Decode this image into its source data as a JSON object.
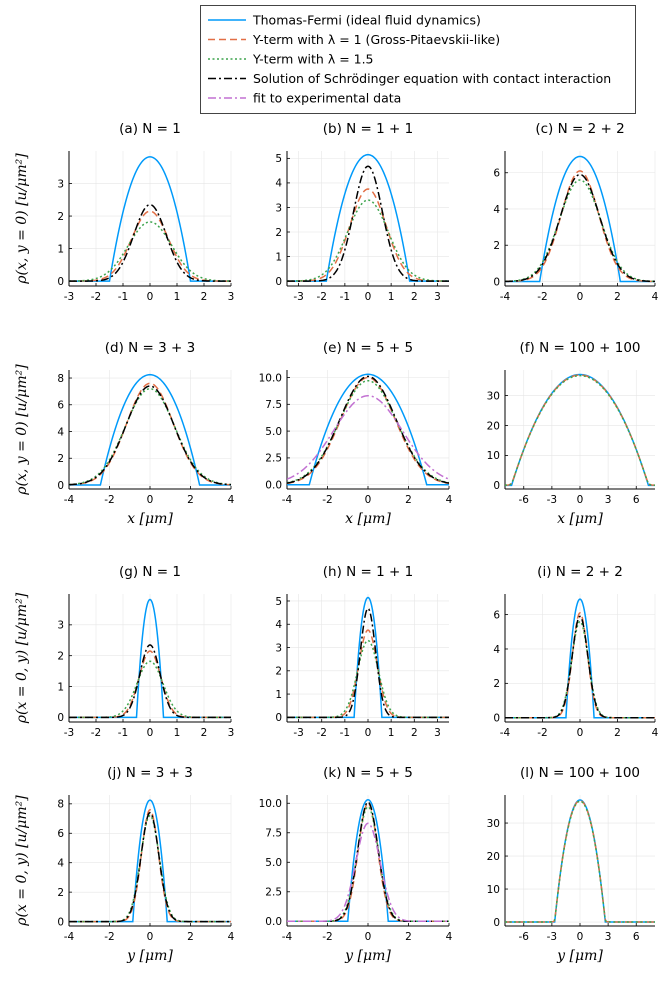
{
  "legend": [
    {
      "label": "Thomas-Fermi (ideal fluid dynamics)",
      "color": "#009AFA",
      "dash": "solid"
    },
    {
      "label": "Y-term with λ = 1 (Gross-Pitaevskii-like)",
      "color": "#E26F46",
      "dash": "dash"
    },
    {
      "label": "Y-term with λ = 1.5",
      "color": "#3DA44D",
      "dash": "dot"
    },
    {
      "label": "Solution of Schrödinger equation with contact interaction",
      "color": "#000000",
      "dash": "dashdot"
    },
    {
      "label": "fit to experimental data",
      "color": "#C271D2",
      "dash": "dashdot"
    }
  ],
  "row_ylabels": [
    "ρ(x, y = 0) [u/μm²]",
    "ρ(x = 0, y) [u/μm²]"
  ],
  "xlabels": [
    "x [μm]",
    "y [μm]"
  ],
  "chart_data": [
    {
      "type": "line",
      "title": "(a) N = 1",
      "axis": "x",
      "xlim": [
        -3,
        3
      ],
      "ylim": [
        -0.15,
        4.0
      ],
      "xticks": [
        -3,
        -2,
        -1,
        0,
        1,
        2,
        3
      ],
      "yticks": [
        0,
        1,
        2,
        3
      ],
      "series": [
        {
          "name": "Thomas-Fermi (ideal fluid dynamics)",
          "kind": "tf",
          "peak": 3.82,
          "R": 1.5
        },
        {
          "name": "Y-term with λ = 1 (Gross-Pitaevskii-like)",
          "kind": "gauss",
          "peak": 2.15,
          "sigma": 0.68
        },
        {
          "name": "Y-term with λ = 1.5",
          "kind": "gauss",
          "peak": 1.82,
          "sigma": 0.8
        },
        {
          "name": "Solution of Schrödinger equation with contact interaction",
          "kind": "gauss",
          "peak": 2.35,
          "sigma": 0.6
        }
      ]
    },
    {
      "type": "line",
      "title": "(b) N = 1 + 1",
      "axis": "x",
      "xlim": [
        -3.5,
        3.5
      ],
      "ylim": [
        -0.2,
        5.3
      ],
      "xticks": [
        -3,
        -2,
        -1,
        0,
        1,
        2,
        3
      ],
      "yticks": [
        0,
        1,
        2,
        3,
        4,
        5
      ],
      "series": [
        {
          "name": "Thomas-Fermi (ideal fluid dynamics)",
          "kind": "tf",
          "peak": 5.15,
          "R": 1.8
        },
        {
          "name": "Y-term with λ = 1 (Gross-Pitaevskii-like)",
          "kind": "gauss",
          "peak": 3.75,
          "sigma": 0.78
        },
        {
          "name": "Y-term with λ = 1.5",
          "kind": "gauss",
          "peak": 3.3,
          "sigma": 0.88
        },
        {
          "name": "Solution of Schrödinger equation with contact interaction",
          "kind": "gauss",
          "peak": 4.68,
          "sigma": 0.62
        }
      ]
    },
    {
      "type": "line",
      "title": "(c) N = 2 + 2",
      "axis": "x",
      "xlim": [
        -4,
        4
      ],
      "ylim": [
        -0.25,
        7.2
      ],
      "xticks": [
        -4,
        -2,
        0,
        2,
        4
      ],
      "yticks": [
        0,
        2,
        4,
        6
      ],
      "series": [
        {
          "name": "Thomas-Fermi (ideal fluid dynamics)",
          "kind": "tf",
          "peak": 6.9,
          "R": 2.15
        },
        {
          "name": "Y-term with λ = 1 (Gross-Pitaevskii-like)",
          "kind": "gauss",
          "peak": 6.1,
          "sigma": 1.0
        },
        {
          "name": "Y-term with λ = 1.5",
          "kind": "gauss",
          "peak": 5.6,
          "sigma": 1.1
        },
        {
          "name": "Solution of Schrödinger equation with contact interaction",
          "kind": "gauss",
          "peak": 5.9,
          "sigma": 1.05
        }
      ]
    },
    {
      "type": "line",
      "title": "(d) N = 3 + 3",
      "axis": "x",
      "xlim": [
        -4,
        4
      ],
      "ylim": [
        -0.3,
        8.6
      ],
      "xticks": [
        -4,
        -2,
        0,
        2,
        4
      ],
      "yticks": [
        0,
        2,
        4,
        6,
        8
      ],
      "series": [
        {
          "name": "Thomas-Fermi (ideal fluid dynamics)",
          "kind": "tf",
          "peak": 8.25,
          "R": 2.45
        },
        {
          "name": "Y-term with λ = 1 (Gross-Pitaevskii-like)",
          "kind": "gauss",
          "peak": 7.6,
          "sigma": 1.15
        },
        {
          "name": "Y-term with λ = 1.5",
          "kind": "gauss",
          "peak": 7.2,
          "sigma": 1.22
        },
        {
          "name": "Solution of Schrödinger equation with contact interaction",
          "kind": "gauss",
          "peak": 7.4,
          "sigma": 1.18
        }
      ]
    },
    {
      "type": "line",
      "title": "(e) N = 5 + 5",
      "axis": "x",
      "xlim": [
        -4,
        4
      ],
      "ylim": [
        -0.4,
        10.7
      ],
      "xticks": [
        -4,
        -2,
        0,
        2,
        4
      ],
      "yticks": [
        0,
        2.5,
        5,
        7.5,
        10
      ],
      "ytick_labels": [
        "0.0",
        "2.5",
        "5.0",
        "7.5",
        "10.0"
      ],
      "series": [
        {
          "name": "Thomas-Fermi (ideal fluid dynamics)",
          "kind": "tf",
          "peak": 10.3,
          "R": 2.9
        },
        {
          "name": "Y-term with λ = 1 (Gross-Pitaevskii-like)",
          "kind": "gauss",
          "peak": 10.0,
          "sigma": 1.35
        },
        {
          "name": "Y-term with λ = 1.5",
          "kind": "gauss",
          "peak": 9.7,
          "sigma": 1.42
        },
        {
          "name": "Solution of Schrödinger equation with contact interaction",
          "kind": "gauss",
          "peak": 10.1,
          "sigma": 1.38
        },
        {
          "name": "fit to experimental data",
          "kind": "gauss",
          "peak": 8.3,
          "sigma": 1.7
        }
      ]
    },
    {
      "type": "line",
      "title": "(f) N = 100 + 100",
      "axis": "x",
      "xlim": [
        -8,
        8
      ],
      "ylim": [
        -1.2,
        38.5
      ],
      "xticks": [
        -6,
        -3,
        0,
        3,
        6
      ],
      "yticks": [
        0,
        10,
        20,
        30
      ],
      "series": [
        {
          "name": "Thomas-Fermi (ideal fluid dynamics)",
          "kind": "tf",
          "peak": 37.0,
          "R": 7.3
        },
        {
          "name": "Y-term with λ = 1 (Gross-Pitaevskii-like)",
          "kind": "tfs",
          "peak": 36.8,
          "R": 7.3
        },
        {
          "name": "Y-term with λ = 1.5",
          "kind": "tfs",
          "peak": 36.6,
          "R": 7.3
        }
      ]
    },
    {
      "type": "line",
      "title": "(g) N = 1",
      "axis": "y",
      "xlim": [
        -3,
        3
      ],
      "ylim": [
        -0.15,
        4.0
      ],
      "xticks": [
        -3,
        -2,
        -1,
        0,
        1,
        2,
        3
      ],
      "yticks": [
        0,
        1,
        2,
        3
      ],
      "series": [
        {
          "name": "Thomas-Fermi (ideal fluid dynamics)",
          "kind": "tf",
          "peak": 3.82,
          "R": 0.5
        },
        {
          "name": "Y-term with λ = 1 (Gross-Pitaevskii-like)",
          "kind": "gauss",
          "peak": 2.15,
          "sigma": 0.4
        },
        {
          "name": "Y-term with λ = 1.5",
          "kind": "gauss",
          "peak": 1.82,
          "sigma": 0.48
        },
        {
          "name": "Solution of Schrödinger equation with contact interaction",
          "kind": "gauss",
          "peak": 2.35,
          "sigma": 0.37
        }
      ]
    },
    {
      "type": "line",
      "title": "(h) N = 1 + 1",
      "axis": "y",
      "xlim": [
        -3.5,
        3.5
      ],
      "ylim": [
        -0.2,
        5.3
      ],
      "xticks": [
        -3,
        -2,
        -1,
        0,
        1,
        2,
        3
      ],
      "yticks": [
        0,
        1,
        2,
        3,
        4,
        5
      ],
      "series": [
        {
          "name": "Thomas-Fermi (ideal fluid dynamics)",
          "kind": "tf",
          "peak": 5.15,
          "R": 0.6
        },
        {
          "name": "Y-term with λ = 1 (Gross-Pitaevskii-like)",
          "kind": "gauss",
          "peak": 3.75,
          "sigma": 0.4
        },
        {
          "name": "Y-term with λ = 1.5",
          "kind": "gauss",
          "peak": 3.3,
          "sigma": 0.45
        },
        {
          "name": "Solution of Schrödinger equation with contact interaction",
          "kind": "gauss",
          "peak": 4.68,
          "sigma": 0.33
        }
      ]
    },
    {
      "type": "line",
      "title": "(i) N = 2 + 2",
      "axis": "y",
      "xlim": [
        -4,
        4
      ],
      "ylim": [
        -0.25,
        7.2
      ],
      "xticks": [
        -4,
        -2,
        0,
        2,
        4
      ],
      "yticks": [
        0,
        2,
        4,
        6
      ],
      "series": [
        {
          "name": "Thomas-Fermi (ideal fluid dynamics)",
          "kind": "tf",
          "peak": 6.9,
          "R": 0.75
        },
        {
          "name": "Y-term with λ = 1 (Gross-Pitaevskii-like)",
          "kind": "gauss",
          "peak": 6.1,
          "sigma": 0.4
        },
        {
          "name": "Y-term with λ = 1.5",
          "kind": "gauss",
          "peak": 5.6,
          "sigma": 0.44
        },
        {
          "name": "Solution of Schrödinger equation with contact interaction",
          "kind": "gauss",
          "peak": 5.9,
          "sigma": 0.42
        }
      ]
    },
    {
      "type": "line",
      "title": "(j) N = 3 + 3",
      "axis": "y",
      "xlim": [
        -4,
        4
      ],
      "ylim": [
        -0.3,
        8.6
      ],
      "xticks": [
        -4,
        -2,
        0,
        2,
        4
      ],
      "yticks": [
        0,
        2,
        4,
        6,
        8
      ],
      "series": [
        {
          "name": "Thomas-Fermi (ideal fluid dynamics)",
          "kind": "tf",
          "peak": 8.25,
          "R": 0.85
        },
        {
          "name": "Y-term with λ = 1 (Gross-Pitaevskii-like)",
          "kind": "gauss",
          "peak": 7.6,
          "sigma": 0.42
        },
        {
          "name": "Y-term with λ = 1.5",
          "kind": "gauss",
          "peak": 7.2,
          "sigma": 0.46
        },
        {
          "name": "Solution of Schrödinger equation with contact interaction",
          "kind": "gauss",
          "peak": 7.4,
          "sigma": 0.44
        }
      ]
    },
    {
      "type": "line",
      "title": "(k) N = 5 + 5",
      "axis": "y",
      "xlim": [
        -4,
        4
      ],
      "ylim": [
        -0.4,
        10.7
      ],
      "xticks": [
        -4,
        -2,
        0,
        2,
        4
      ],
      "yticks": [
        0,
        2.5,
        5,
        7.5,
        10
      ],
      "ytick_labels": [
        "0.0",
        "2.5",
        "5.0",
        "7.5",
        "10.0"
      ],
      "series": [
        {
          "name": "Thomas-Fermi (ideal fluid dynamics)",
          "kind": "tf",
          "peak": 10.3,
          "R": 1.0
        },
        {
          "name": "Y-term with λ = 1 (Gross-Pitaevskii-like)",
          "kind": "gauss",
          "peak": 10.0,
          "sigma": 0.48
        },
        {
          "name": "Y-term with λ = 1.5",
          "kind": "gauss",
          "peak": 9.7,
          "sigma": 0.52
        },
        {
          "name": "Solution of Schrödinger equation with contact interaction",
          "kind": "gauss",
          "peak": 10.1,
          "sigma": 0.5
        },
        {
          "name": "fit to experimental data",
          "kind": "gauss",
          "peak": 8.3,
          "sigma": 0.6
        }
      ]
    },
    {
      "type": "line",
      "title": "(l) N = 100 + 100",
      "axis": "y",
      "xlim": [
        -8,
        8
      ],
      "ylim": [
        -1.2,
        38.5
      ],
      "xticks": [
        -6,
        -3,
        0,
        3,
        6
      ],
      "yticks": [
        0,
        10,
        20,
        30
      ],
      "series": [
        {
          "name": "Thomas-Fermi (ideal fluid dynamics)",
          "kind": "tf",
          "peak": 37.0,
          "R": 2.7
        },
        {
          "name": "Y-term with λ = 1 (Gross-Pitaevskii-like)",
          "kind": "tfs",
          "peak": 36.8,
          "R": 2.7
        },
        {
          "name": "Y-term with λ = 1.5",
          "kind": "tfs",
          "peak": 36.6,
          "R": 2.7
        }
      ]
    }
  ]
}
